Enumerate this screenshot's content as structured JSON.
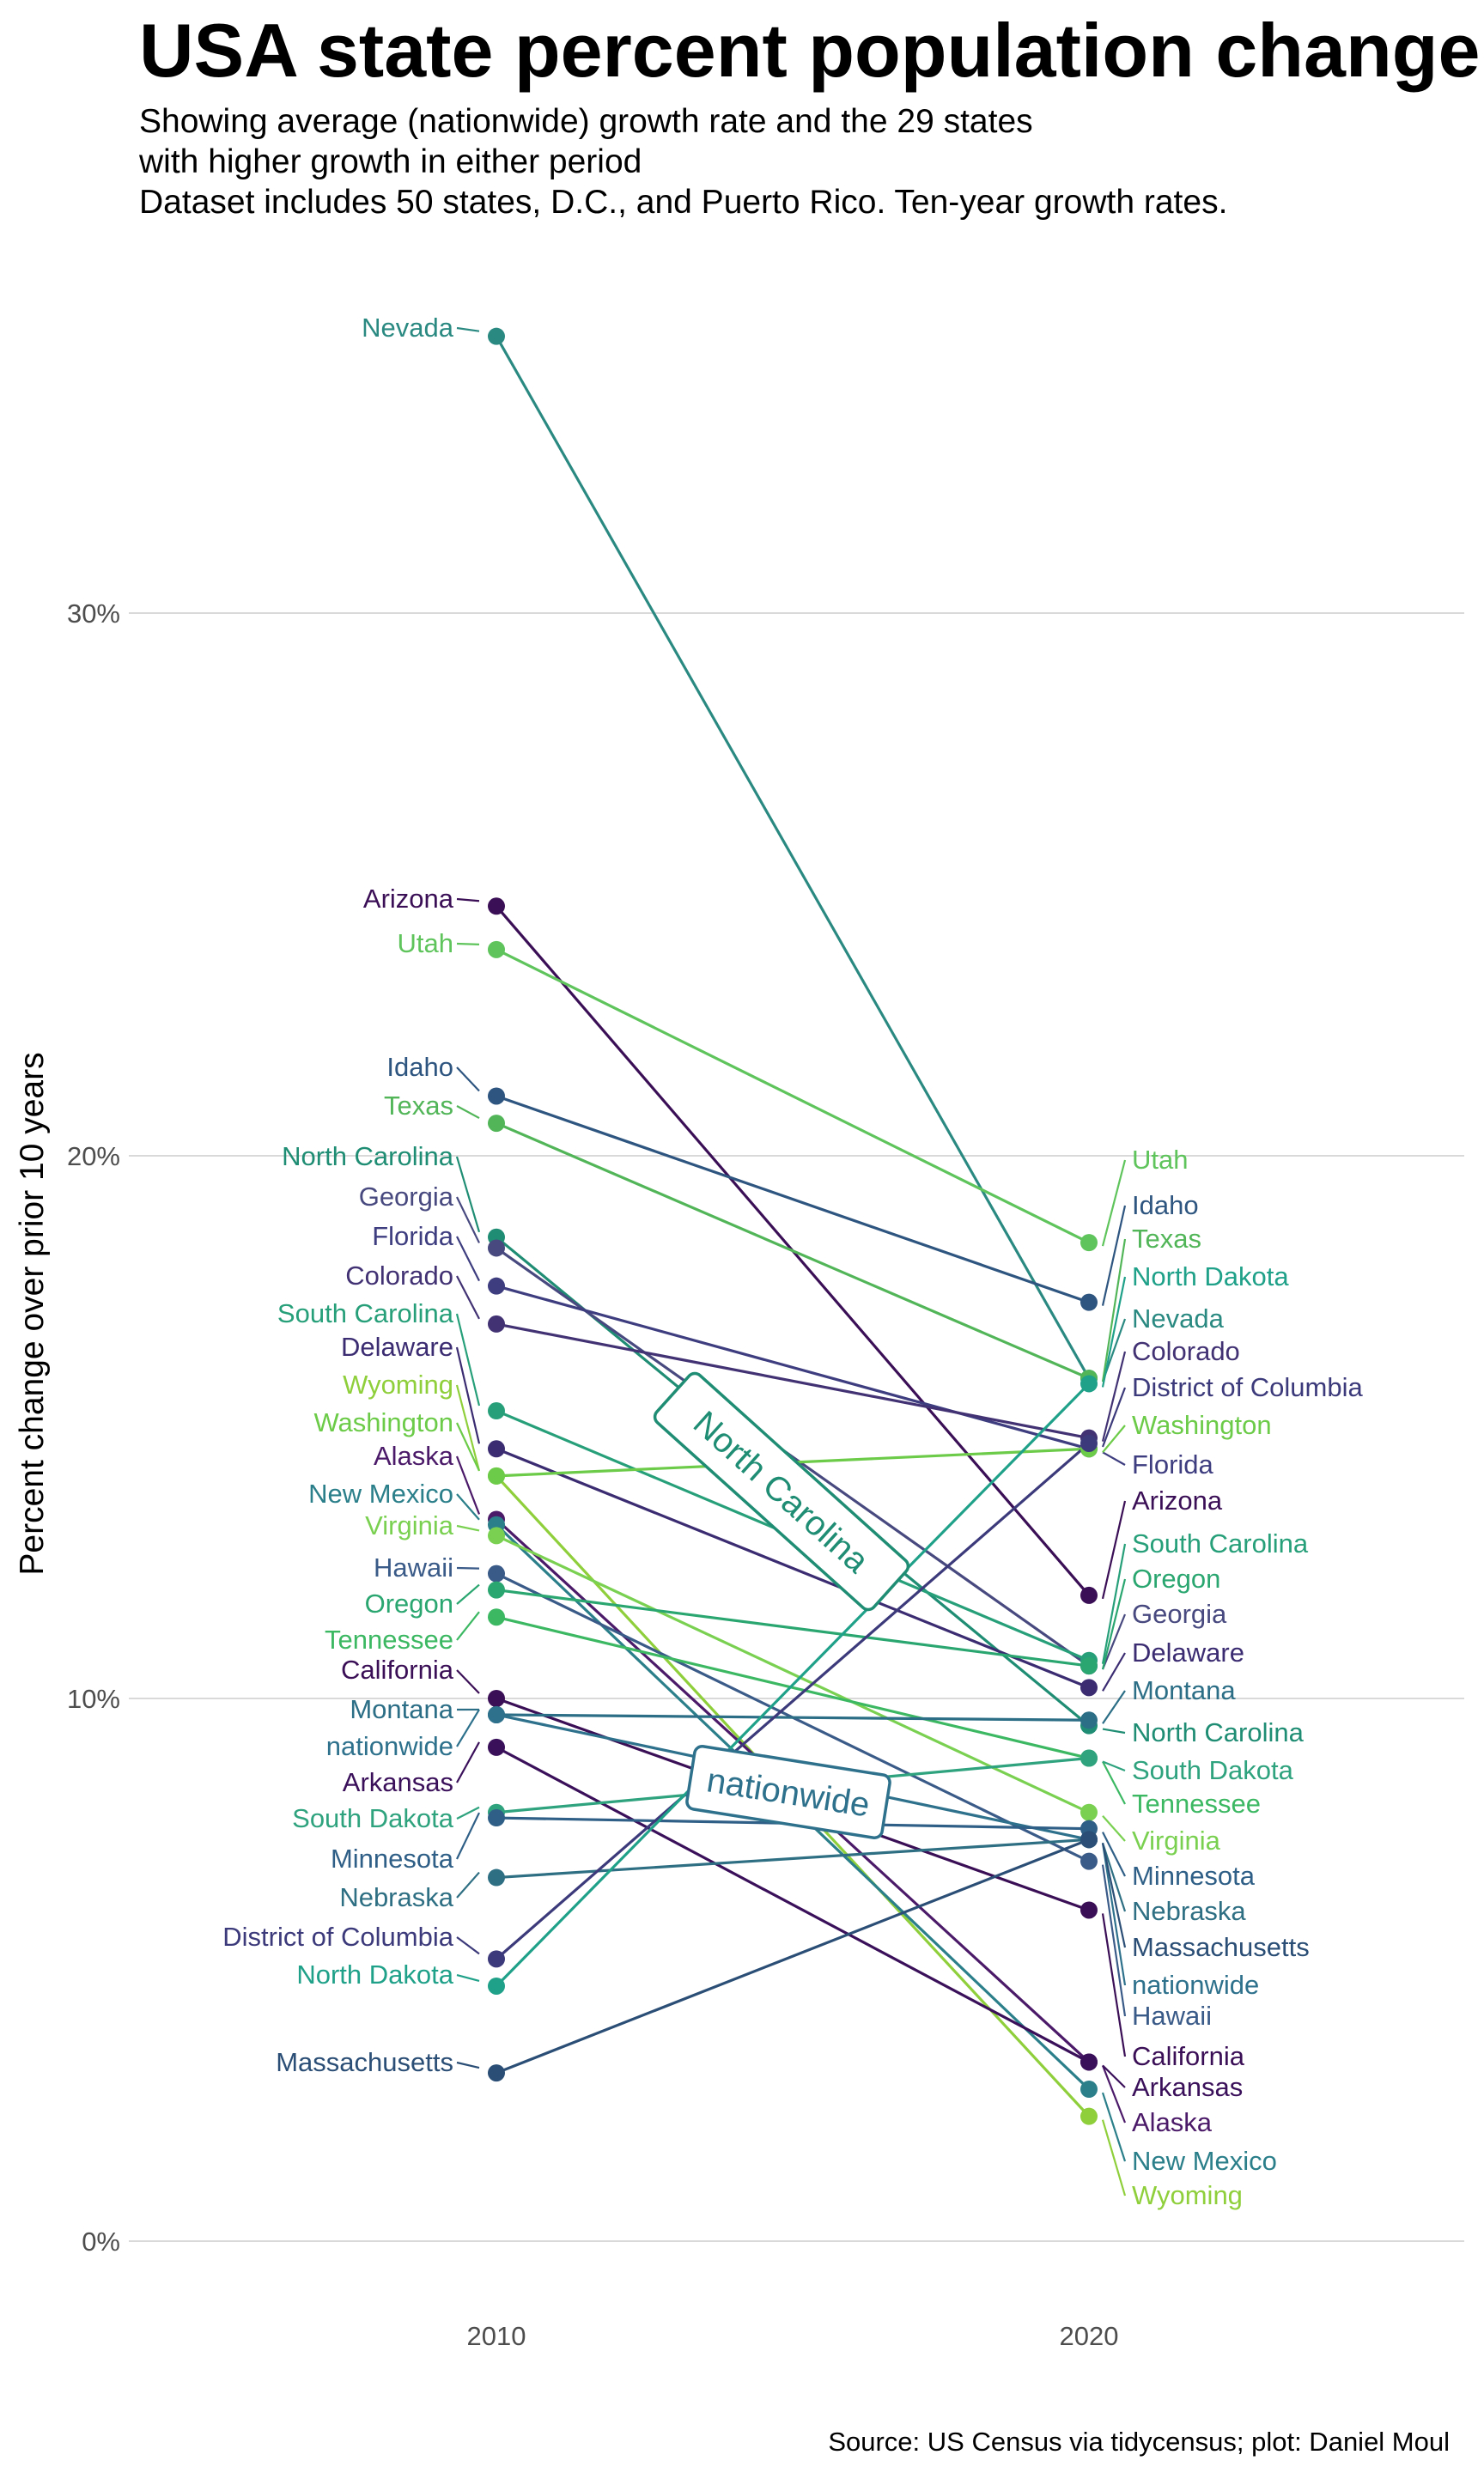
{
  "title": "USA state percent population change",
  "subtitle": [
    "Showing average (nationwide) growth rate and the 29 states",
    "with higher growth in either period",
    "Dataset includes 50 states, D.C., and Puerto Rico. Ten-year growth rates."
  ],
  "caption": "Source: US Census via tidycensus; plot: Daniel Moul",
  "chart_data": {
    "type": "line",
    "x": [
      "2010",
      "2020"
    ],
    "ylabel": "Percent change over prior 10 years",
    "ylim": [
      -1,
      36.5
    ],
    "yticks": [
      0,
      10,
      20,
      30
    ],
    "ytick_labels": [
      "0%",
      "10%",
      "20%",
      "30%"
    ],
    "grid": "horizontal",
    "series": [
      {
        "name": "Nevada",
        "values": [
          35.1,
          15.9
        ],
        "color": "#2a8a82"
      },
      {
        "name": "Arizona",
        "values": [
          24.6,
          11.9
        ],
        "color": "#3b0f56"
      },
      {
        "name": "Utah",
        "values": [
          23.8,
          18.4
        ],
        "color": "#5ec45b"
      },
      {
        "name": "Idaho",
        "values": [
          21.1,
          17.3
        ],
        "color": "#2d557f"
      },
      {
        "name": "Texas",
        "values": [
          20.6,
          15.9
        ],
        "color": "#52b659"
      },
      {
        "name": "North Carolina",
        "values": [
          18.5,
          9.5
        ],
        "color": "#1f8d73"
      },
      {
        "name": "Georgia",
        "values": [
          18.3,
          10.6
        ],
        "color": "#47497f"
      },
      {
        "name": "Florida",
        "values": [
          17.6,
          14.6
        ],
        "color": "#3d3d80"
      },
      {
        "name": "Colorado",
        "values": [
          16.9,
          14.8
        ],
        "color": "#423274"
      },
      {
        "name": "South Carolina",
        "values": [
          15.3,
          10.7
        ],
        "color": "#27a07a"
      },
      {
        "name": "Delaware",
        "values": [
          14.6,
          10.2
        ],
        "color": "#3b2c72"
      },
      {
        "name": "Wyoming",
        "values": [
          14.1,
          2.3
        ],
        "color": "#8fcf3c"
      },
      {
        "name": "Washington",
        "values": [
          14.1,
          14.6
        ],
        "color": "#6ccb48"
      },
      {
        "name": "Alaska",
        "values": [
          13.3,
          3.3
        ],
        "color": "#4b1a68"
      },
      {
        "name": "New Mexico",
        "values": [
          13.2,
          2.8
        ],
        "color": "#2b7f8a"
      },
      {
        "name": "Virginia",
        "values": [
          13.0,
          7.9
        ],
        "color": "#7ad151"
      },
      {
        "name": "Hawaii",
        "values": [
          12.3,
          7.0
        ],
        "color": "#3a5a88"
      },
      {
        "name": "Oregon",
        "values": [
          12.0,
          10.6
        ],
        "color": "#2aa670"
      },
      {
        "name": "Tennessee",
        "values": [
          11.5,
          8.9
        ],
        "color": "#3cb863"
      },
      {
        "name": "California",
        "values": [
          10.0,
          6.1
        ],
        "color": "#3b0f56"
      },
      {
        "name": "Montana",
        "values": [
          9.7,
          9.6
        ],
        "color": "#2b6e86"
      },
      {
        "name": "nationwide",
        "values": [
          9.7,
          7.4
        ],
        "color": "#2e718c"
      },
      {
        "name": "Arkansas",
        "values": [
          9.1,
          3.3
        ],
        "color": "#3a105a"
      },
      {
        "name": "South Dakota",
        "values": [
          7.9,
          8.9
        ],
        "color": "#2fa27e"
      },
      {
        "name": "Minnesota",
        "values": [
          7.8,
          7.6
        ],
        "color": "#2f5f86"
      },
      {
        "name": "Nebraska",
        "values": [
          6.7,
          7.4
        ],
        "color": "#2f6f83"
      },
      {
        "name": "District of Columbia",
        "values": [
          5.2,
          14.7
        ],
        "color": "#3c3a7a"
      },
      {
        "name": "North Dakota",
        "values": [
          4.7,
          15.8
        ],
        "color": "#1fa088"
      },
      {
        "name": "Massachusetts",
        "values": [
          3.1,
          7.4
        ],
        "color": "#2a4e75"
      }
    ],
    "boxed_labels": [
      {
        "text": "North Carolina",
        "color": "#1f8d73"
      },
      {
        "text": "nationwide",
        "color": "#2e718c"
      }
    ]
  }
}
